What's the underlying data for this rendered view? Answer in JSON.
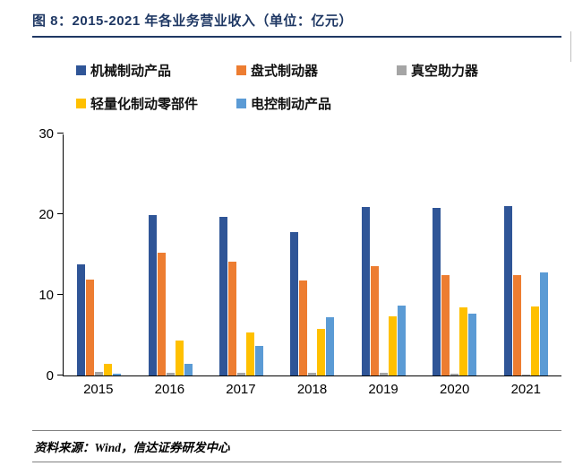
{
  "header": {
    "title": "图 8：2015-2021 年各业务营业收入（单位：亿元）"
  },
  "footer": {
    "source": "资料来源：Wind，信达证券研发中心"
  },
  "chart_data": {
    "type": "bar",
    "title": "2015-2021 年各业务营业收入",
    "unit": "亿元",
    "categories": [
      "2015",
      "2016",
      "2017",
      "2018",
      "2019",
      "2020",
      "2021"
    ],
    "series": [
      {
        "name": "机械制动产品",
        "color": "#2F5597",
        "values": [
          13.8,
          19.9,
          19.7,
          17.8,
          20.9,
          20.8,
          21.0
        ]
      },
      {
        "name": "盘式制动器",
        "color": "#ED7D31",
        "values": [
          11.9,
          15.2,
          14.1,
          11.8,
          13.6,
          12.4,
          12.5
        ]
      },
      {
        "name": "真空助力器",
        "color": "#A5A5A5",
        "values": [
          0.5,
          0.3,
          0.3,
          0.3,
          0.3,
          0.2,
          0.1
        ]
      },
      {
        "name": "轻量化制动零部件",
        "color": "#FFC000",
        "values": [
          1.5,
          4.3,
          5.3,
          5.8,
          7.3,
          8.4,
          8.6
        ]
      },
      {
        "name": "电控制动产品",
        "color": "#5B9BD5",
        "values": [
          0.2,
          1.5,
          3.7,
          7.2,
          8.7,
          7.7,
          12.8
        ]
      }
    ],
    "ylim": [
      0,
      30
    ],
    "yticks": [
      0,
      10,
      20,
      30
    ],
    "grid": false,
    "legend_position": "top",
    "xlabel": "",
    "ylabel": ""
  }
}
